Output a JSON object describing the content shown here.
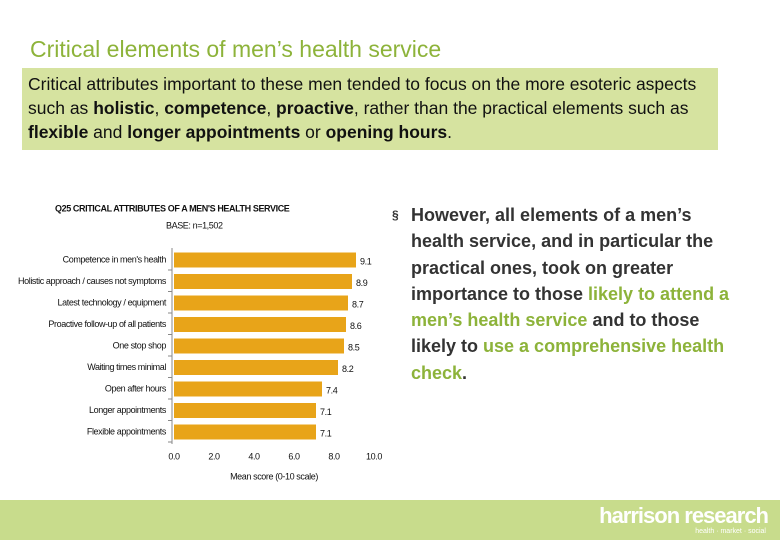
{
  "header": {
    "title": "Critical elements of men’s health service"
  },
  "summary": {
    "parts": [
      "Critical attributes important to these men tended to focus on the more esoteric aspects such as ",
      "holistic",
      ", ",
      "competence",
      ", ",
      "proactive",
      ", rather than the practical elements such as ",
      "flexible",
      " and ",
      "longer appointments",
      " or ",
      "opening hours",
      "."
    ]
  },
  "chart_data": {
    "type": "bar",
    "orientation": "horizontal",
    "title": "Q25 CRITICAL ATTRIBUTES OF A MEN'S HEALTH SERVICE",
    "subtitle": "BASE: n=1,502",
    "x_label": "Mean score (0-10 scale)",
    "categories": [
      "Competence in men's health",
      "Holistic approach / causes not symptoms",
      "Latest technology / equipment",
      "Proactive follow-up of all patients",
      "One stop shop",
      "Waiting times minimal",
      "Open after hours",
      "Longer appointments",
      "Flexible appointments"
    ],
    "values": [
      9.1,
      8.9,
      8.7,
      8.6,
      8.5,
      8.2,
      7.4,
      7.1,
      7.1
    ],
    "color": "#e8a419",
    "xlim": [
      0,
      10
    ],
    "xticks": [
      {
        "value": 0,
        "label": "0.0"
      },
      {
        "value": 2,
        "label": "2.0"
      },
      {
        "value": 4,
        "label": "4.0"
      },
      {
        "value": 6,
        "label": "6.0"
      },
      {
        "value": 8,
        "label": "8.0"
      },
      {
        "value": 10,
        "label": "10.0"
      }
    ],
    "grid": false
  },
  "bullet": {
    "parts": [
      "However, all elements of a men’s health service, and in particular the practical ones, took on greater importance to those ",
      "likely to attend a men’s health service",
      " and to those likely to ",
      "use a comprehensive health check",
      "."
    ]
  },
  "footer": {
    "logo": "harrison research",
    "tagline": "health · market · social"
  }
}
